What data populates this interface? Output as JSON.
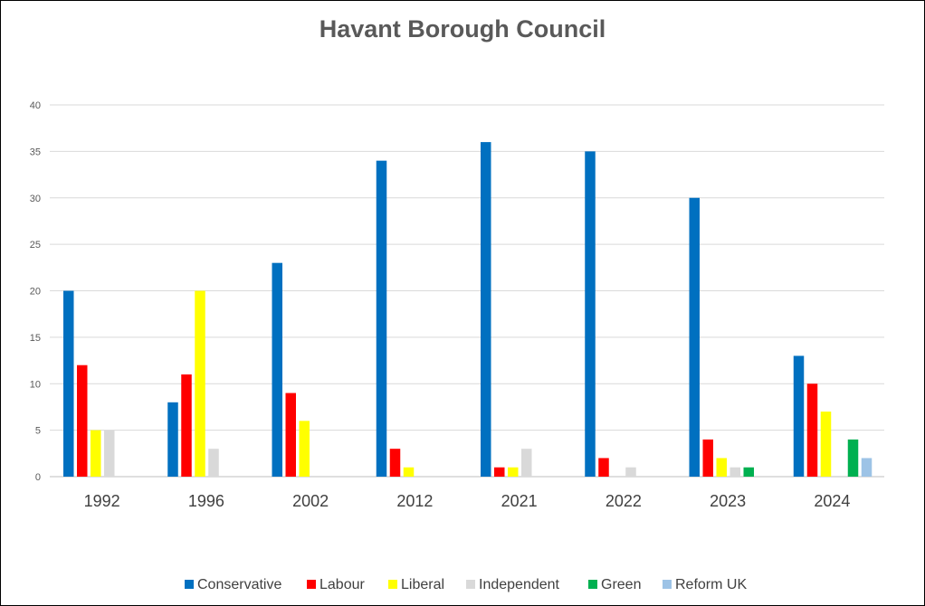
{
  "chart_data": {
    "type": "bar",
    "title": "Havant Borough Council",
    "xlabel": "",
    "ylabel": "",
    "ylim": [
      0,
      40
    ],
    "yticks": [
      0,
      5,
      10,
      15,
      20,
      25,
      30,
      35,
      40
    ],
    "grid": true,
    "legend_position": "bottom",
    "categories": [
      "1992",
      "1996",
      "2002",
      "2012",
      "2021",
      "2022",
      "2023",
      "2024"
    ],
    "series": [
      {
        "name": "Conservative",
        "color": "#0070C0",
        "values": [
          20,
          8,
          23,
          34,
          36,
          35,
          30,
          13
        ]
      },
      {
        "name": "Labour",
        "color": "#FF0000",
        "values": [
          12,
          11,
          9,
          3,
          1,
          2,
          4,
          10
        ]
      },
      {
        "name": "Liberal",
        "color": "#FFFF00",
        "values": [
          5,
          20,
          6,
          1,
          1,
          0,
          2,
          7
        ]
      },
      {
        "name": "Independent",
        "color": "#D9D9D9",
        "values": [
          5,
          3,
          0,
          0,
          3,
          1,
          1,
          0
        ]
      },
      {
        "name": "Green",
        "color": "#00B050",
        "values": [
          0,
          0,
          0,
          0,
          0,
          0,
          1,
          4
        ]
      },
      {
        "name": "Reform UK",
        "color": "#9DC3E6",
        "values": [
          0,
          0,
          0,
          0,
          0,
          0,
          0,
          2
        ]
      }
    ]
  }
}
